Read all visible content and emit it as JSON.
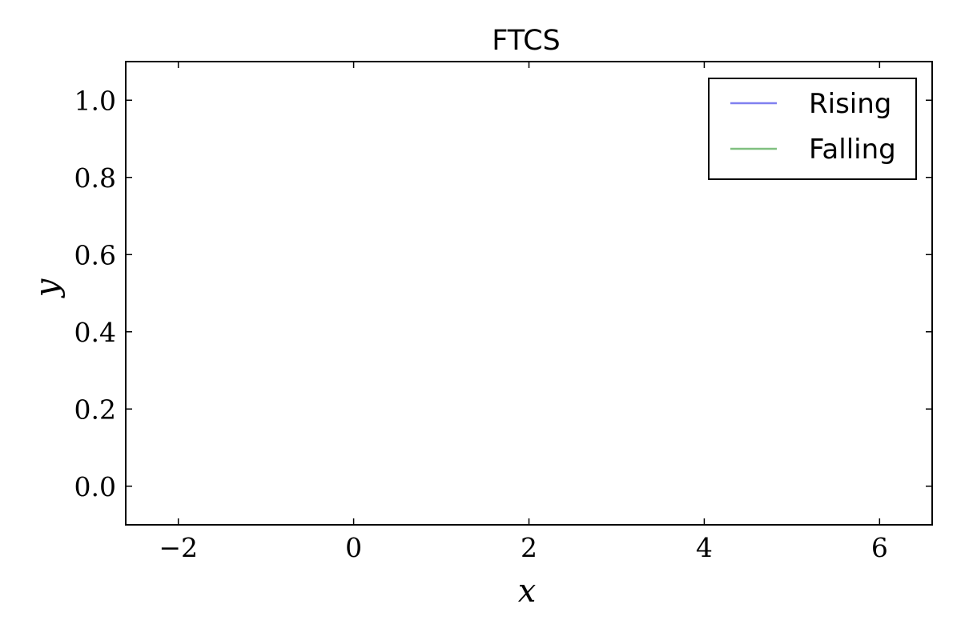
{
  "chart_data": {
    "type": "line",
    "title": "FTCS",
    "xlabel": "x",
    "ylabel": "y",
    "xlim": [
      -2.6,
      6.6
    ],
    "ylim": [
      -0.1,
      1.1
    ],
    "xticks": [
      -2,
      0,
      2,
      4,
      6
    ],
    "yticks": [
      0.0,
      0.2,
      0.4,
      0.6,
      0.8,
      1.0
    ],
    "xtick_labels": [
      "−2",
      "0",
      "2",
      "4",
      "6"
    ],
    "ytick_labels": [
      "0.0",
      "0.2",
      "0.4",
      "0.6",
      "0.8",
      "1.0"
    ],
    "grid": false,
    "legend_position": "top-right",
    "series": [
      {
        "name": "Rising",
        "color": "#8080f0",
        "x": [],
        "y": []
      },
      {
        "name": "Falling",
        "color": "#80c080",
        "x": [],
        "y": []
      }
    ]
  }
}
